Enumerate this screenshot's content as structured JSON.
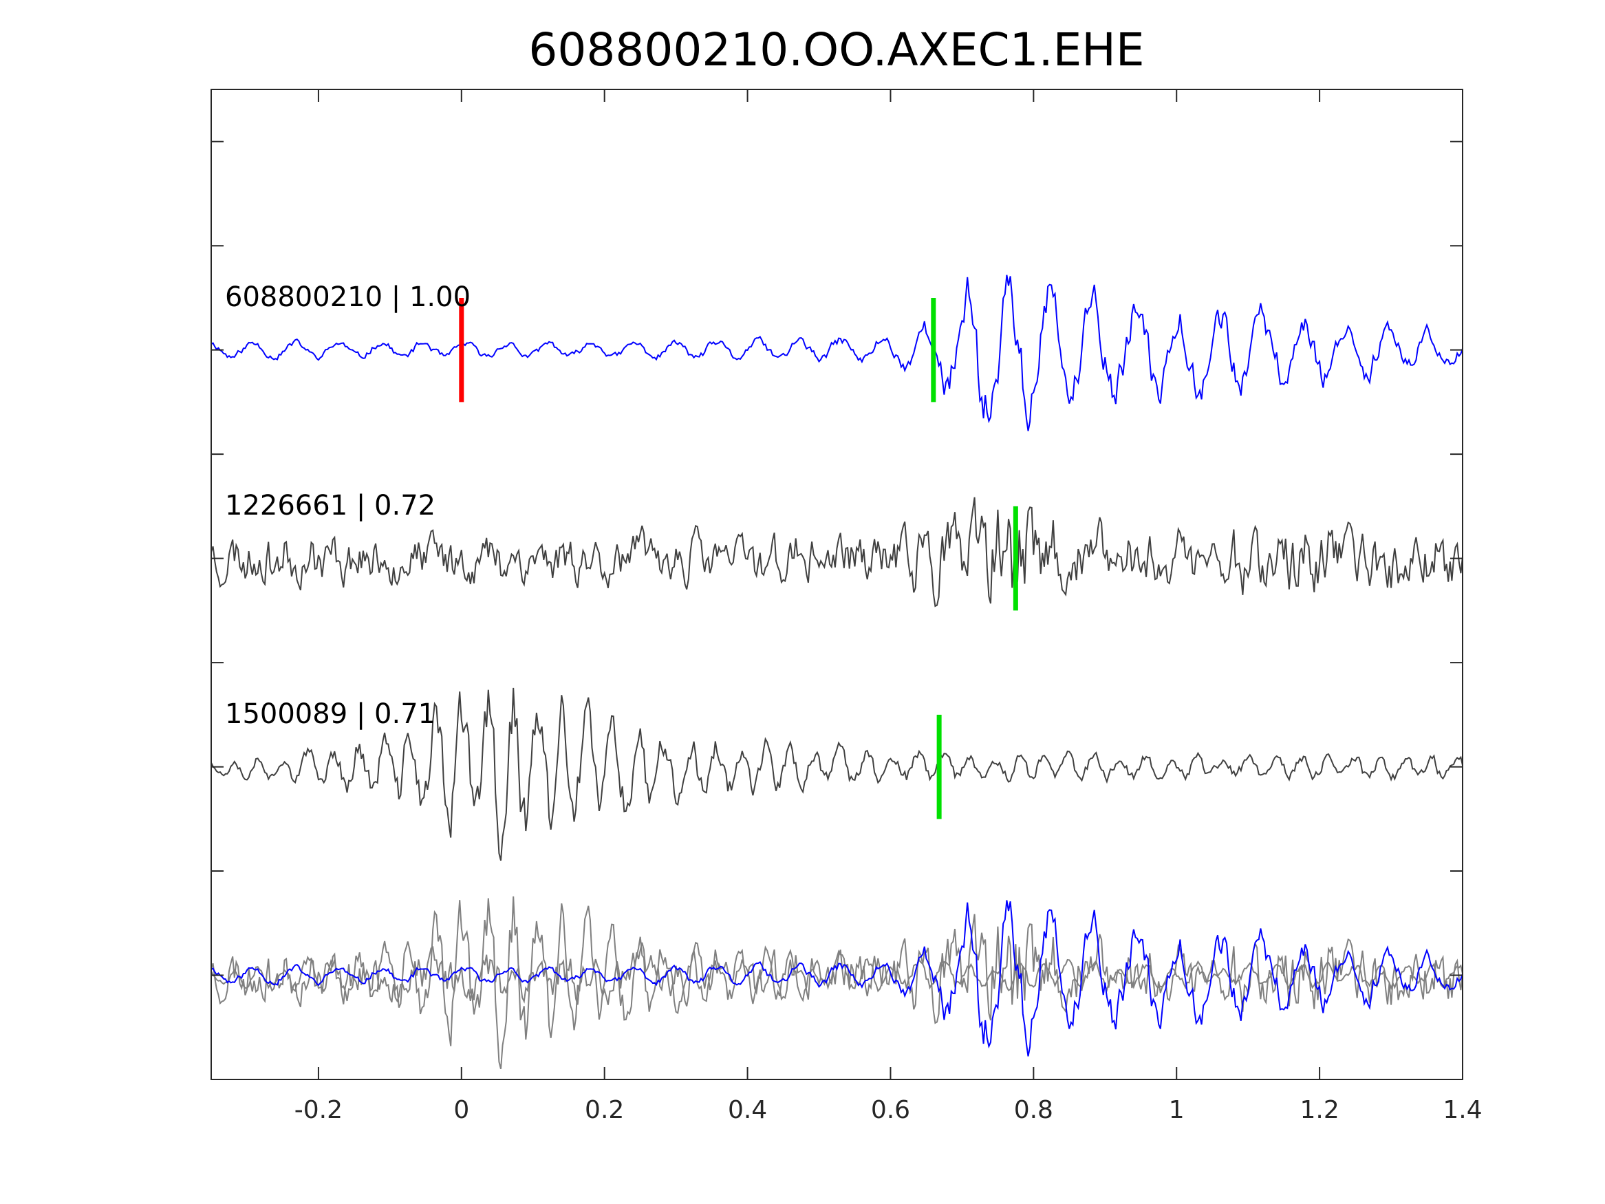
{
  "chart_data": {
    "type": "line",
    "title": "608800210.OO.AXEC1.EHE",
    "xlabel": "",
    "ylabel": "",
    "xlim": [
      -0.35,
      1.4
    ],
    "xticks": [
      -0.2,
      0,
      0.2,
      0.4,
      0.6,
      0.8,
      1,
      1.2,
      1.4
    ],
    "xtick_labels": [
      "-0.2",
      "0",
      "0.2",
      "0.4",
      "0.6",
      "0.8",
      "1",
      "1.2",
      "1.4"
    ],
    "y_tick_count": 9,
    "grid": false,
    "colors": {
      "reference": "#0000ff",
      "template": "#404040",
      "overlay_template": "#808080",
      "red_marker": "#ff0000",
      "green_marker": "#00e000",
      "axis": "#262626"
    },
    "traces": [
      {
        "name": "608800210",
        "cc": "1.00",
        "label": "608800210 | 1.00",
        "role": "reference",
        "offset": 3,
        "red_marker_t": 0.0,
        "green_marker_t": 0.66,
        "envelope": [
          [
            -0.35,
            0.05
          ],
          [
            0.3,
            0.05
          ],
          [
            0.6,
            0.08
          ],
          [
            0.66,
            0.18
          ],
          [
            0.68,
            0.38
          ],
          [
            0.77,
            0.48
          ],
          [
            0.85,
            0.32
          ],
          [
            1.0,
            0.28
          ],
          [
            1.2,
            0.2
          ],
          [
            1.4,
            0.1
          ]
        ],
        "freq": 17,
        "noise": 0.35,
        "seed": 11
      },
      {
        "name": "1226661",
        "cc": "0.72",
        "label": "1226661 | 0.72",
        "role": "template",
        "offset": 2,
        "green_marker_t": 0.775,
        "envelope": [
          [
            -0.35,
            0.14
          ],
          [
            0.6,
            0.14
          ],
          [
            0.65,
            0.22
          ],
          [
            0.72,
            0.25
          ],
          [
            0.77,
            0.38
          ],
          [
            0.85,
            0.18
          ],
          [
            1.2,
            0.2
          ],
          [
            1.4,
            0.16
          ]
        ],
        "freq": 28,
        "noise": 0.85,
        "seed": 23
      },
      {
        "name": "1500089",
        "cc": "0.71",
        "label": "1500089 | 0.71",
        "role": "template",
        "offset": 1,
        "green_marker_t": 0.668,
        "envelope": [
          [
            -0.35,
            0.06
          ],
          [
            -0.2,
            0.1
          ],
          [
            -0.1,
            0.22
          ],
          [
            0.0,
            0.42
          ],
          [
            0.07,
            0.52
          ],
          [
            0.12,
            0.42
          ],
          [
            0.2,
            0.3
          ],
          [
            0.3,
            0.2
          ],
          [
            0.4,
            0.15
          ],
          [
            0.6,
            0.1
          ],
          [
            0.8,
            0.08
          ],
          [
            1.1,
            0.07
          ],
          [
            1.4,
            0.08
          ]
        ],
        "freq": 28,
        "noise": 0.4,
        "seed": 37
      }
    ],
    "overlay_offset": 0
  }
}
